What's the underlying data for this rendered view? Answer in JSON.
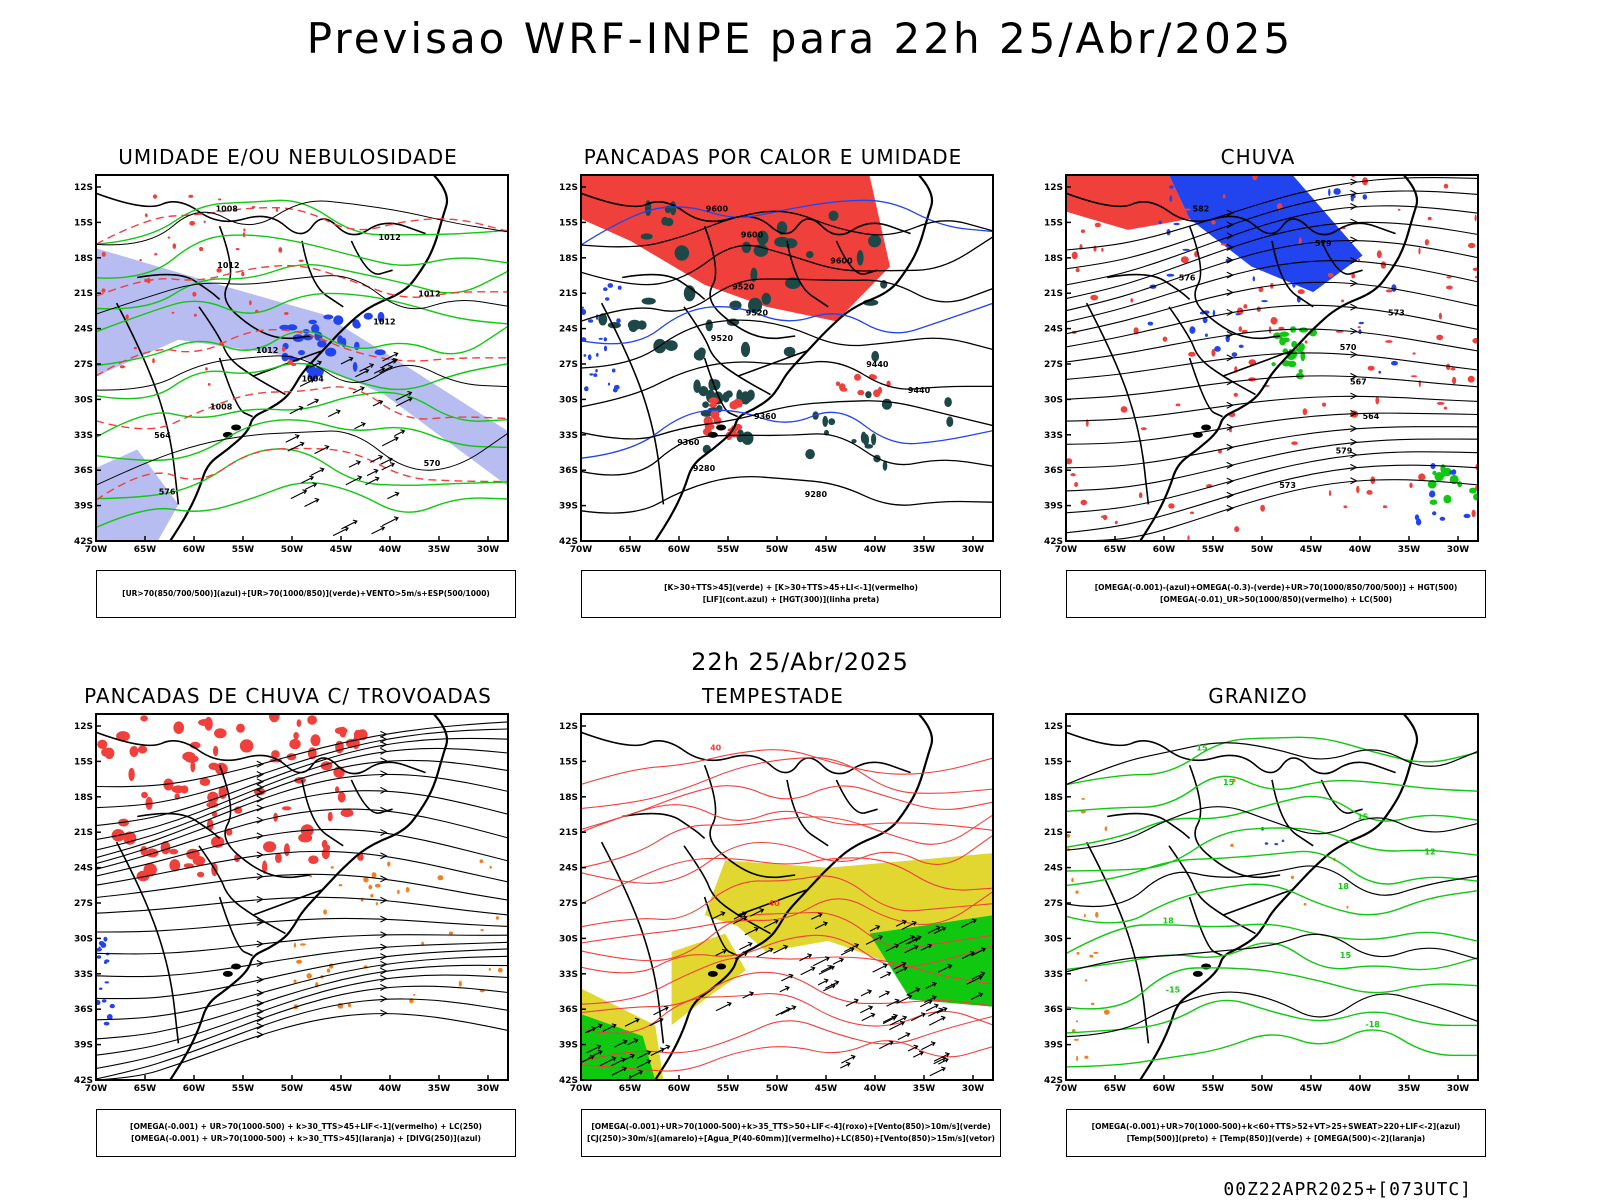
{
  "main_title": "Previsao WRF-INPE  para 22h 25/Abr/2025",
  "mid_title": "22h 25/Abr/2025",
  "footer": "00Z22APR2025+[073UTC]",
  "axes": {
    "lat_labels": [
      "12S",
      "15S",
      "18S",
      "21S",
      "24S",
      "27S",
      "30S",
      "33S",
      "36S",
      "39S",
      "42S"
    ],
    "lon_labels": [
      "70W",
      "65W",
      "60W",
      "55W",
      "50W",
      "45W",
      "40W",
      "35W",
      "30W"
    ]
  },
  "panels": [
    {
      "title": "UMIDADE E/OU NEBULOSIDADE",
      "legend": [
        "[UR>70(850/700/500)](azul)+[UR>70(1000/850)](verde)+VENTO>5m/s+ESP(500/1000)"
      ],
      "contour_labels": [
        "1008",
        "1012",
        "1012",
        "1012",
        "1012",
        "1012",
        "1004",
        "1008",
        "564",
        "570",
        "576"
      ]
    },
    {
      "title": "PANCADAS POR CALOR E UMIDADE",
      "legend": [
        "[K>30+TTS>45](verde) + [K>30+TTS>45+LI<-1](vermelho)",
        "[LIF](cont.azul) + [HGT(300)](linha preta)"
      ],
      "contour_labels": [
        "9600",
        "9600",
        "9600",
        "9520",
        "9520",
        "9520",
        "9440",
        "9440",
        "9360",
        "9360",
        "9280",
        "9280"
      ]
    },
    {
      "title": "CHUVA",
      "legend": [
        "[OMEGA(-0.001)-(azul)+OMEGA(-0.3)-(verde)+UR>70(1000/850/700/500)] + HGT(500)",
        "[OMEGA(-0.01)_UR>50(1000/850)(vermelho) + LC(500)"
      ],
      "contour_labels": [
        "582",
        "579",
        "576",
        "573",
        "570",
        "567",
        "564",
        "579",
        "573"
      ]
    },
    {
      "title": "PANCADAS DE CHUVA C/ TROVOADAS",
      "legend": [
        "[OMEGA(-0.001) + UR>70(1000-500) + k>30_TTS>45+LIF<-1](vermelho) + LC(250)",
        "[OMEGA(-0.001) + UR>70(1000-500) + k>30_TTS>45](laranja) + [DIVG(250)](azul)"
      ],
      "contour_labels": []
    },
    {
      "title": "TEMPESTADE",
      "legend": [
        "[OMEGA(-0.001)+UR>70(1000-500)+k>35_TTS>50+LIF<-4](roxo)+[Vento(850)>10m/s](verde)",
        "[CJ(250)>30m/s](amarelo)+[Agua_P(40-60mm)](vermelho)+LC(850)+[Vento(850)>15m/s](vetor)"
      ],
      "contour_labels": [
        "40",
        "40"
      ]
    },
    {
      "title": "GRANIZO",
      "legend": [
        "[OMEGA(-0.001)+UR>70(1000-500)+k<60+TTS>52+VT>25+SWEAT>220+LIF<-2](azul)",
        "[Temp(500)](preto) + [Temp(850)](verde) + [OMEGA(500)<-2](laranja)"
      ],
      "contour_labels": [
        "15",
        "15",
        "15",
        "12",
        "18",
        "18",
        "15",
        "-15",
        "-18"
      ]
    }
  ],
  "colors": {
    "red": "#f0403c",
    "blue": "#2244ee",
    "green": "#10c810",
    "lavender": "#aab0ee",
    "darkteal": "#1e4848",
    "yellow": "#e2d630",
    "orange": "#f08020",
    "black": "#000000"
  }
}
